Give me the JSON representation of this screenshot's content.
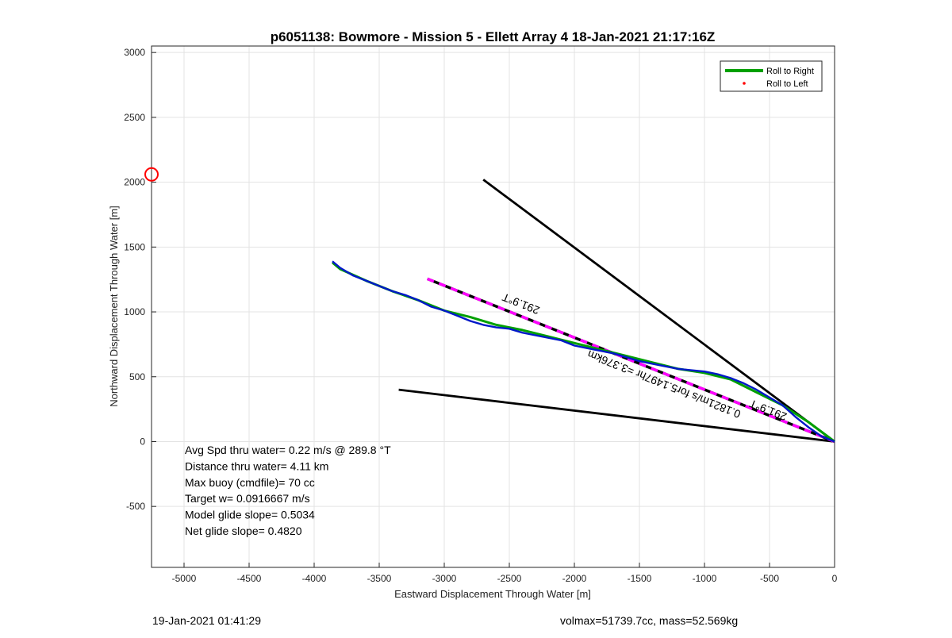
{
  "chart_data": {
    "type": "line",
    "title": "p6051138: Bowmore - Mission 5 - Ellett Array 4 18-Jan-2021 21:17:16Z",
    "xlabel": "Eastward Displacement Through Water [m]",
    "ylabel": "Northward Displacement Through Water [m]",
    "xlim": [
      -5250,
      0
    ],
    "ylim": [
      -970,
      3050
    ],
    "xticks": [
      -5000,
      -4500,
      -4000,
      -3500,
      -3000,
      -2500,
      -2000,
      -1500,
      -1000,
      -500,
      0
    ],
    "yticks": [
      -500,
      0,
      500,
      1000,
      1500,
      2000,
      2500,
      3000
    ],
    "grid": true,
    "legend_position": "top-right",
    "legend": [
      {
        "label": "Roll to Right",
        "color": "#00a000",
        "style": "line"
      },
      {
        "label": "Roll to Left",
        "color": "#ff0000",
        "style": "dot"
      }
    ],
    "series": [
      {
        "name": "Roll to Right",
        "color": "#00a000",
        "x": [
          0,
          -200,
          -400,
          -600,
          -800,
          -1000,
          -1200,
          -1400,
          -1600,
          -1800,
          -2000,
          -2200,
          -2400,
          -2600,
          -2800,
          -3000,
          -3200,
          -3400,
          -3600,
          -3800,
          -3860
        ],
        "y": [
          0,
          150,
          280,
          380,
          480,
          530,
          560,
          610,
          660,
          710,
          760,
          810,
          860,
          900,
          960,
          1010,
          1090,
          1160,
          1240,
          1330,
          1380
        ]
      },
      {
        "name": "track",
        "color": "#0018c8",
        "x": [
          0,
          -100,
          -200,
          -300,
          -400,
          -500,
          -600,
          -700,
          -800,
          -900,
          -1000,
          -1100,
          -1200,
          -1300,
          -1400,
          -1500,
          -1600,
          -1700,
          -1800,
          -1900,
          -2000,
          -2100,
          -2200,
          -2300,
          -2400,
          -2500,
          -2600,
          -2700,
          -2800,
          -2900,
          -3000,
          -3100,
          -3200,
          -3300,
          -3400,
          -3500,
          -3600,
          -3700,
          -3800,
          -3860
        ],
        "y": [
          0,
          40,
          110,
          190,
          280,
          340,
          400,
          450,
          490,
          520,
          540,
          550,
          560,
          580,
          600,
          620,
          650,
          680,
          700,
          720,
          740,
          780,
          800,
          820,
          840,
          870,
          880,
          900,
          930,
          970,
          1010,
          1040,
          1090,
          1130,
          1160,
          1200,
          1240,
          1280,
          1340,
          1390
        ]
      }
    ],
    "reference_lines": [
      {
        "name": "bound-upper",
        "color": "#000000",
        "x": [
          0,
          -2700
        ],
        "y": [
          0,
          2020
        ]
      },
      {
        "name": "bound-lower",
        "color": "#000000",
        "x": [
          0,
          -3350
        ],
        "y": [
          0,
          400
        ]
      },
      {
        "name": "heading-291.9",
        "color": "#ff00ff",
        "dashed_with": "#000000",
        "x": [
          0,
          -3130
        ],
        "y": [
          0,
          1255
        ]
      }
    ],
    "marker": {
      "x": -5250,
      "y": 2060,
      "color": "#ff0000"
    },
    "annotations": [
      {
        "text": "291.9°T",
        "x": -2400,
        "y": 1090,
        "angle": 201.9
      },
      {
        "text": "291.9°T",
        "x": -500,
        "y": 270,
        "angle": 201.9
      },
      {
        "text": "0.1821m/s for5.1497hr =3.376km",
        "x": -1300,
        "y": 470,
        "angle": 201.9
      }
    ],
    "stats": [
      "Avg Spd thru water=  0.22 m/s @ 289.8 °T",
      "Distance thru water=  4.11 km",
      "Max buoy (cmdfile)= 70 cc",
      "Target w= 0.0916667 m/s",
      "Model glide slope= 0.5034",
      "Net glide slope= 0.4820"
    ]
  },
  "footer": {
    "timestamp": "19-Jan-2021 01:41:29",
    "info": "volmax=51739.7cc, mass=52.569kg"
  }
}
